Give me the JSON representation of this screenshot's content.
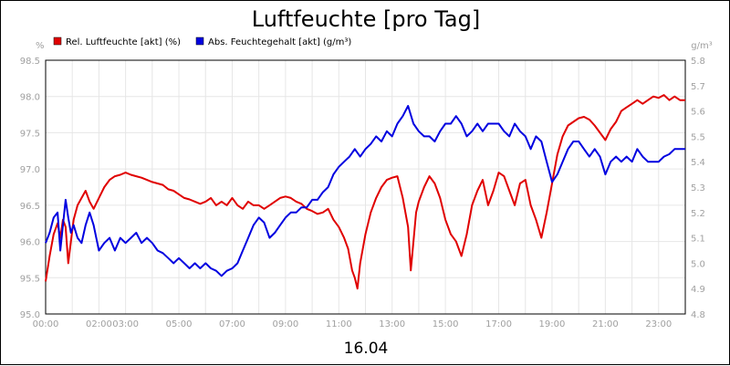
{
  "chart_data": {
    "type": "line",
    "title": "Luftfeuchte [pro Tag]",
    "date_label": "16.04",
    "y_left": {
      "unit": "%",
      "min": 95.0,
      "max": 98.5,
      "ticks": [
        "95.0",
        "95.5",
        "96.0",
        "96.5",
        "97.0",
        "97.5",
        "98.0",
        "98.5"
      ]
    },
    "y_right": {
      "unit": "g/m³",
      "min": 4.8,
      "max": 5.8,
      "ticks": [
        "4.8",
        "4.9",
        "5.0",
        "5.1",
        "5.2",
        "5.3",
        "5.4",
        "5.5",
        "5.6",
        "5.7",
        "5.8"
      ]
    },
    "x_axis": {
      "min": 0,
      "max": 24,
      "ticks": [
        {
          "t": 0,
          "label": "00:00"
        },
        {
          "t": 2,
          "label": "02:00"
        },
        {
          "t": 3,
          "label": "03:00"
        },
        {
          "t": 5,
          "label": "05:00"
        },
        {
          "t": 7,
          "label": "07:00"
        },
        {
          "t": 9,
          "label": "09:00"
        },
        {
          "t": 11,
          "label": "11:00"
        },
        {
          "t": 13,
          "label": "13:00"
        },
        {
          "t": 15,
          "label": "15:00"
        },
        {
          "t": 17,
          "label": "17:00"
        },
        {
          "t": 19,
          "label": "19:00"
        },
        {
          "t": 21,
          "label": "21:00"
        },
        {
          "t": 23,
          "label": "23:00"
        }
      ],
      "gridlines": [
        0,
        1,
        2,
        3,
        4,
        5,
        6,
        7,
        8,
        9,
        10,
        11,
        12,
        13,
        14,
        15,
        16,
        17,
        18,
        19,
        20,
        21,
        22,
        23
      ]
    },
    "grid": true,
    "legend_position": "top-left",
    "series": [
      {
        "name": "Rel. Luftfeuchte [akt] (%)",
        "color": "#e00000",
        "axis": "left",
        "points": [
          [
            0.0,
            95.45
          ],
          [
            0.15,
            95.8
          ],
          [
            0.3,
            96.1
          ],
          [
            0.45,
            96.25
          ],
          [
            0.55,
            96.05
          ],
          [
            0.65,
            96.3
          ],
          [
            0.75,
            96.2
          ],
          [
            0.85,
            95.7
          ],
          [
            0.95,
            96.0
          ],
          [
            1.05,
            96.3
          ],
          [
            1.2,
            96.5
          ],
          [
            1.35,
            96.6
          ],
          [
            1.5,
            96.7
          ],
          [
            1.65,
            96.55
          ],
          [
            1.8,
            96.45
          ],
          [
            2.0,
            96.6
          ],
          [
            2.2,
            96.75
          ],
          [
            2.4,
            96.85
          ],
          [
            2.6,
            96.9
          ],
          [
            2.8,
            96.92
          ],
          [
            3.0,
            96.95
          ],
          [
            3.2,
            96.92
          ],
          [
            3.4,
            96.9
          ],
          [
            3.6,
            96.88
          ],
          [
            3.8,
            96.85
          ],
          [
            4.0,
            96.82
          ],
          [
            4.2,
            96.8
          ],
          [
            4.4,
            96.78
          ],
          [
            4.6,
            96.72
          ],
          [
            4.8,
            96.7
          ],
          [
            5.0,
            96.65
          ],
          [
            5.2,
            96.6
          ],
          [
            5.4,
            96.58
          ],
          [
            5.6,
            96.55
          ],
          [
            5.8,
            96.52
          ],
          [
            6.0,
            96.55
          ],
          [
            6.2,
            96.6
          ],
          [
            6.4,
            96.5
          ],
          [
            6.6,
            96.55
          ],
          [
            6.8,
            96.5
          ],
          [
            7.0,
            96.6
          ],
          [
            7.2,
            96.5
          ],
          [
            7.4,
            96.45
          ],
          [
            7.6,
            96.55
          ],
          [
            7.8,
            96.5
          ],
          [
            8.0,
            96.5
          ],
          [
            8.2,
            96.45
          ],
          [
            8.4,
            96.5
          ],
          [
            8.6,
            96.55
          ],
          [
            8.8,
            96.6
          ],
          [
            9.0,
            96.62
          ],
          [
            9.2,
            96.6
          ],
          [
            9.4,
            96.55
          ],
          [
            9.6,
            96.52
          ],
          [
            9.8,
            96.45
          ],
          [
            10.0,
            96.42
          ],
          [
            10.2,
            96.38
          ],
          [
            10.4,
            96.4
          ],
          [
            10.6,
            96.45
          ],
          [
            10.8,
            96.3
          ],
          [
            11.0,
            96.2
          ],
          [
            11.2,
            96.05
          ],
          [
            11.35,
            95.9
          ],
          [
            11.5,
            95.6
          ],
          [
            11.6,
            95.5
          ],
          [
            11.7,
            95.35
          ],
          [
            11.8,
            95.7
          ],
          [
            12.0,
            96.1
          ],
          [
            12.2,
            96.4
          ],
          [
            12.4,
            96.6
          ],
          [
            12.6,
            96.75
          ],
          [
            12.8,
            96.85
          ],
          [
            13.0,
            96.88
          ],
          [
            13.2,
            96.9
          ],
          [
            13.4,
            96.6
          ],
          [
            13.6,
            96.2
          ],
          [
            13.7,
            95.6
          ],
          [
            13.8,
            96.0
          ],
          [
            13.9,
            96.4
          ],
          [
            14.0,
            96.55
          ],
          [
            14.2,
            96.75
          ],
          [
            14.4,
            96.9
          ],
          [
            14.6,
            96.8
          ],
          [
            14.8,
            96.6
          ],
          [
            15.0,
            96.3
          ],
          [
            15.2,
            96.1
          ],
          [
            15.4,
            96.0
          ],
          [
            15.6,
            95.8
          ],
          [
            15.8,
            96.1
          ],
          [
            16.0,
            96.5
          ],
          [
            16.2,
            96.7
          ],
          [
            16.4,
            96.85
          ],
          [
            16.6,
            96.5
          ],
          [
            16.8,
            96.7
          ],
          [
            17.0,
            96.95
          ],
          [
            17.2,
            96.9
          ],
          [
            17.4,
            96.7
          ],
          [
            17.6,
            96.5
          ],
          [
            17.8,
            96.8
          ],
          [
            18.0,
            96.85
          ],
          [
            18.2,
            96.5
          ],
          [
            18.4,
            96.3
          ],
          [
            18.6,
            96.05
          ],
          [
            18.8,
            96.4
          ],
          [
            19.0,
            96.8
          ],
          [
            19.2,
            97.2
          ],
          [
            19.4,
            97.45
          ],
          [
            19.6,
            97.6
          ],
          [
            19.8,
            97.65
          ],
          [
            20.0,
            97.7
          ],
          [
            20.2,
            97.72
          ],
          [
            20.4,
            97.68
          ],
          [
            20.6,
            97.6
          ],
          [
            20.8,
            97.5
          ],
          [
            21.0,
            97.4
          ],
          [
            21.2,
            97.55
          ],
          [
            21.4,
            97.65
          ],
          [
            21.6,
            97.8
          ],
          [
            21.8,
            97.85
          ],
          [
            22.0,
            97.9
          ],
          [
            22.2,
            97.95
          ],
          [
            22.4,
            97.9
          ],
          [
            22.6,
            97.95
          ],
          [
            22.8,
            98.0
          ],
          [
            23.0,
            97.98
          ],
          [
            23.2,
            98.02
          ],
          [
            23.4,
            97.95
          ],
          [
            23.6,
            98.0
          ],
          [
            23.8,
            97.95
          ],
          [
            24.0,
            97.95
          ]
        ]
      },
      {
        "name": "Abs. Feuchtegehalt [akt] (g/m³)",
        "color": "#0000e0",
        "axis": "right",
        "points": [
          [
            0.0,
            5.08
          ],
          [
            0.15,
            5.12
          ],
          [
            0.3,
            5.18
          ],
          [
            0.45,
            5.2
          ],
          [
            0.55,
            5.05
          ],
          [
            0.65,
            5.15
          ],
          [
            0.75,
            5.25
          ],
          [
            0.85,
            5.18
          ],
          [
            0.95,
            5.12
          ],
          [
            1.05,
            5.15
          ],
          [
            1.2,
            5.1
          ],
          [
            1.35,
            5.08
          ],
          [
            1.5,
            5.15
          ],
          [
            1.65,
            5.2
          ],
          [
            1.8,
            5.15
          ],
          [
            2.0,
            5.05
          ],
          [
            2.2,
            5.08
          ],
          [
            2.4,
            5.1
          ],
          [
            2.6,
            5.05
          ],
          [
            2.8,
            5.1
          ],
          [
            3.0,
            5.08
          ],
          [
            3.2,
            5.1
          ],
          [
            3.4,
            5.12
          ],
          [
            3.6,
            5.08
          ],
          [
            3.8,
            5.1
          ],
          [
            4.0,
            5.08
          ],
          [
            4.2,
            5.05
          ],
          [
            4.4,
            5.04
          ],
          [
            4.6,
            5.02
          ],
          [
            4.8,
            5.0
          ],
          [
            5.0,
            5.02
          ],
          [
            5.2,
            5.0
          ],
          [
            5.4,
            4.98
          ],
          [
            5.6,
            5.0
          ],
          [
            5.8,
            4.98
          ],
          [
            6.0,
            5.0
          ],
          [
            6.2,
            4.98
          ],
          [
            6.4,
            4.97
          ],
          [
            6.6,
            4.95
          ],
          [
            6.8,
            4.97
          ],
          [
            7.0,
            4.98
          ],
          [
            7.2,
            5.0
          ],
          [
            7.4,
            5.05
          ],
          [
            7.6,
            5.1
          ],
          [
            7.8,
            5.15
          ],
          [
            8.0,
            5.18
          ],
          [
            8.2,
            5.16
          ],
          [
            8.4,
            5.1
          ],
          [
            8.6,
            5.12
          ],
          [
            8.8,
            5.15
          ],
          [
            9.0,
            5.18
          ],
          [
            9.2,
            5.2
          ],
          [
            9.4,
            5.2
          ],
          [
            9.6,
            5.22
          ],
          [
            9.8,
            5.22
          ],
          [
            10.0,
            5.25
          ],
          [
            10.2,
            5.25
          ],
          [
            10.4,
            5.28
          ],
          [
            10.6,
            5.3
          ],
          [
            10.8,
            5.35
          ],
          [
            11.0,
            5.38
          ],
          [
            11.2,
            5.4
          ],
          [
            11.4,
            5.42
          ],
          [
            11.6,
            5.45
          ],
          [
            11.8,
            5.42
          ],
          [
            12.0,
            5.45
          ],
          [
            12.2,
            5.47
          ],
          [
            12.4,
            5.5
          ],
          [
            12.6,
            5.48
          ],
          [
            12.8,
            5.52
          ],
          [
            13.0,
            5.5
          ],
          [
            13.2,
            5.55
          ],
          [
            13.4,
            5.58
          ],
          [
            13.6,
            5.62
          ],
          [
            13.8,
            5.55
          ],
          [
            14.0,
            5.52
          ],
          [
            14.2,
            5.5
          ],
          [
            14.4,
            5.5
          ],
          [
            14.6,
            5.48
          ],
          [
            14.8,
            5.52
          ],
          [
            15.0,
            5.55
          ],
          [
            15.2,
            5.55
          ],
          [
            15.4,
            5.58
          ],
          [
            15.6,
            5.55
          ],
          [
            15.8,
            5.5
          ],
          [
            16.0,
            5.52
          ],
          [
            16.2,
            5.55
          ],
          [
            16.4,
            5.52
          ],
          [
            16.6,
            5.55
          ],
          [
            16.8,
            5.55
          ],
          [
            17.0,
            5.55
          ],
          [
            17.2,
            5.52
          ],
          [
            17.4,
            5.5
          ],
          [
            17.6,
            5.55
          ],
          [
            17.8,
            5.52
          ],
          [
            18.0,
            5.5
          ],
          [
            18.2,
            5.45
          ],
          [
            18.4,
            5.5
          ],
          [
            18.6,
            5.48
          ],
          [
            18.8,
            5.4
          ],
          [
            19.0,
            5.32
          ],
          [
            19.2,
            5.35
          ],
          [
            19.4,
            5.4
          ],
          [
            19.6,
            5.45
          ],
          [
            19.8,
            5.48
          ],
          [
            20.0,
            5.48
          ],
          [
            20.2,
            5.45
          ],
          [
            20.4,
            5.42
          ],
          [
            20.6,
            5.45
          ],
          [
            20.8,
            5.42
          ],
          [
            21.0,
            5.35
          ],
          [
            21.2,
            5.4
          ],
          [
            21.4,
            5.42
          ],
          [
            21.6,
            5.4
          ],
          [
            21.8,
            5.42
          ],
          [
            22.0,
            5.4
          ],
          [
            22.2,
            5.45
          ],
          [
            22.4,
            5.42
          ],
          [
            22.6,
            5.4
          ],
          [
            22.8,
            5.4
          ],
          [
            23.0,
            5.4
          ],
          [
            23.2,
            5.42
          ],
          [
            23.4,
            5.43
          ],
          [
            23.6,
            5.45
          ],
          [
            23.8,
            5.45
          ],
          [
            24.0,
            5.45
          ]
        ]
      }
    ]
  }
}
